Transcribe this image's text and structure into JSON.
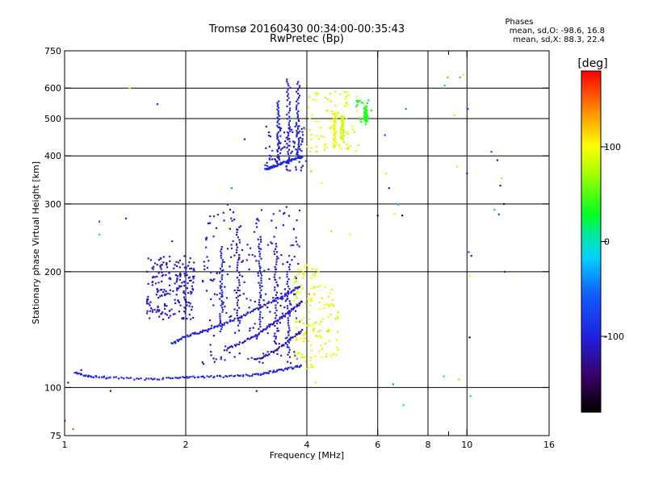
{
  "header": {
    "title_line1": "Tromsø 20160430 00:34:00-00:35:43",
    "title_line2": "RwPretec (Bp)",
    "stats_title": "Phases",
    "stats_line1": "mean, sd,O: -98.6, 16.8",
    "stats_line2": "mean, sd,X: 88.3, 22.4"
  },
  "chart_data": {
    "type": "scatter",
    "xlabel": "Frequency [MHz]",
    "ylabel": "Stationary phase Virtual Height [km]",
    "x_scale": "log",
    "y_scale": "log",
    "xlim": [
      1,
      16
    ],
    "ylim": [
      75,
      750
    ],
    "x_ticks": [
      1,
      2,
      4,
      6,
      8,
      10,
      16
    ],
    "x_tick_labels": [
      "1",
      "2",
      "4",
      "6",
      "8",
      "10",
      "16"
    ],
    "x_minor_ticks": [
      9
    ],
    "x_grid": [
      2,
      4,
      6,
      8,
      10
    ],
    "y_ticks": [
      75,
      100,
      200,
      300,
      400,
      500,
      600,
      750
    ],
    "y_tick_labels": [
      "75",
      "100",
      "200",
      "300",
      "400",
      "500",
      "600",
      "750"
    ],
    "y_grid": [
      100,
      200,
      300,
      400,
      500,
      600
    ],
    "grid": true,
    "colorbar": {
      "label": "[deg]",
      "range": [
        -180,
        180
      ],
      "ticks": [
        100,
        0,
        -100
      ],
      "tick_labels": [
        "100",
        "0",
        "-100"
      ]
    },
    "traces": [
      {
        "kind": "line",
        "phase": -95,
        "points": [
          [
            1.06,
            109
          ],
          [
            1.15,
            107
          ],
          [
            1.3,
            106
          ],
          [
            1.6,
            105
          ],
          [
            1.9,
            106
          ],
          [
            2.2,
            106.5
          ],
          [
            2.6,
            107
          ],
          [
            3.0,
            108
          ],
          [
            3.3,
            110
          ],
          [
            3.6,
            112
          ],
          [
            3.9,
            114
          ]
        ]
      },
      {
        "kind": "line",
        "phase": -100,
        "points": [
          [
            1.85,
            130
          ],
          [
            2.0,
            136
          ],
          [
            2.2,
            140
          ],
          [
            2.4,
            144
          ],
          [
            2.7,
            152
          ],
          [
            3.0,
            160
          ],
          [
            3.3,
            168
          ],
          [
            3.6,
            176
          ],
          [
            3.85,
            184
          ]
        ]
      },
      {
        "kind": "line",
        "phase": -110,
        "points": [
          [
            2.5,
            125
          ],
          [
            2.8,
            132
          ],
          [
            3.1,
            140
          ],
          [
            3.4,
            150
          ],
          [
            3.7,
            160
          ],
          [
            3.9,
            168
          ]
        ]
      },
      {
        "kind": "line",
        "phase": -120,
        "points": [
          [
            3.0,
            118
          ],
          [
            3.3,
            124
          ],
          [
            3.6,
            132
          ],
          [
            3.9,
            142
          ]
        ]
      },
      {
        "kind": "line",
        "phase": -95,
        "points": [
          [
            3.15,
            368
          ],
          [
            3.3,
            375
          ],
          [
            3.5,
            384
          ],
          [
            3.7,
            392
          ],
          [
            3.9,
            398
          ]
        ]
      },
      {
        "kind": "vline",
        "phase": -100,
        "x": 3.05,
        "y": [
          140,
          250
        ]
      },
      {
        "kind": "vline",
        "phase": -105,
        "x": 3.35,
        "y": [
          130,
          240
        ]
      },
      {
        "kind": "vline",
        "phase": -100,
        "x": 3.6,
        "y": [
          120,
          215
        ]
      },
      {
        "kind": "vline",
        "phase": -110,
        "x": 2.7,
        "y": [
          145,
          265
        ]
      },
      {
        "kind": "vline",
        "phase": -95,
        "x": 2.45,
        "y": [
          140,
          235
        ]
      },
      {
        "kind": "vline",
        "phase": -100,
        "x": 3.6,
        "y": [
          390,
          640
        ]
      },
      {
        "kind": "vline",
        "phase": -100,
        "x": 3.4,
        "y": [
          380,
          560
        ]
      },
      {
        "kind": "vline",
        "phase": -105,
        "x": 3.8,
        "y": [
          395,
          630
        ]
      },
      {
        "kind": "vline",
        "phase": 95,
        "x": 4.7,
        "y": [
          420,
          520
        ]
      },
      {
        "kind": "vline",
        "phase": 85,
        "x": 4.9,
        "y": [
          440,
          510
        ]
      },
      {
        "kind": "vline",
        "phase": 40,
        "x": 5.6,
        "y": [
          490,
          540
        ]
      }
    ],
    "clusters": [
      {
        "phase": -105,
        "x": [
          1.6,
          2.1
        ],
        "y": [
          150,
          220
        ],
        "n": 210
      },
      {
        "phase": -100,
        "x": [
          2.2,
          3.9
        ],
        "y": [
          115,
          300
        ],
        "n": 230
      },
      {
        "phase": 95,
        "x": [
          3.7,
          4.3
        ],
        "y": [
          112,
          210
        ],
        "n": 110
      },
      {
        "phase": 90,
        "x": [
          4.3,
          4.8
        ],
        "y": [
          120,
          185
        ],
        "n": 45
      },
      {
        "phase": -100,
        "x": [
          3.15,
          4.0
        ],
        "y": [
          365,
          480
        ],
        "n": 90
      },
      {
        "phase": 90,
        "x": [
          4.0,
          5.4
        ],
        "y": [
          410,
          590
        ],
        "n": 80
      },
      {
        "phase": 30,
        "x": [
          5.3,
          5.8
        ],
        "y": [
          480,
          560
        ],
        "n": 20
      }
    ],
    "scatter_points": [
      [
        1.22,
        270,
        -70
      ],
      [
        1.22,
        250,
        -10
      ],
      [
        1.42,
        275,
        -85
      ],
      [
        1.45,
        600,
        100
      ],
      [
        1.7,
        545,
        -100
      ],
      [
        1.85,
        240,
        -95
      ],
      [
        2.8,
        442,
        -110
      ],
      [
        2.6,
        330,
        -40
      ],
      [
        2.55,
        260,
        100
      ],
      [
        3.0,
        98,
        -100
      ],
      [
        1.3,
        98,
        -110
      ],
      [
        4.2,
        103,
        110
      ],
      [
        4.35,
        340,
        95
      ],
      [
        4.6,
        255,
        120
      ],
      [
        5.1,
        250,
        100
      ],
      [
        6.0,
        280,
        -140
      ],
      [
        6.25,
        453,
        -60
      ],
      [
        6.3,
        360,
        80
      ],
      [
        6.4,
        330,
        -110
      ],
      [
        6.6,
        283,
        90
      ],
      [
        6.55,
        102,
        -40
      ],
      [
        6.75,
        299,
        -30
      ],
      [
        6.9,
        280,
        -150
      ],
      [
        6.95,
        90,
        -10
      ],
      [
        7.05,
        530,
        -40
      ],
      [
        8.75,
        107,
        10
      ],
      [
        8.8,
        610,
        30
      ],
      [
        8.95,
        640,
        130
      ],
      [
        9.3,
        510,
        110
      ],
      [
        9.45,
        375,
        90
      ],
      [
        9.55,
        105,
        60
      ],
      [
        9.6,
        640,
        -10
      ],
      [
        9.8,
        650,
        100
      ],
      [
        10.0,
        360,
        -110
      ],
      [
        10.05,
        530,
        -70
      ],
      [
        10.1,
        225,
        -70
      ],
      [
        10.15,
        195,
        90
      ],
      [
        10.2,
        95,
        -10
      ],
      [
        10.15,
        135,
        -170
      ],
      [
        10.25,
        220,
        -120
      ],
      [
        11.5,
        410,
        -60
      ],
      [
        11.7,
        290,
        -20
      ],
      [
        11.9,
        390,
        -110
      ],
      [
        12.0,
        282,
        -60
      ],
      [
        12.1,
        335,
        -110
      ],
      [
        12.2,
        350,
        70
      ],
      [
        12.35,
        300,
        -130
      ],
      [
        12.4,
        200,
        -100
      ],
      [
        1.0,
        82,
        -160
      ],
      [
        1.05,
        78,
        150
      ],
      [
        1.02,
        103,
        -120
      ],
      [
        1.1,
        111,
        -110
      ],
      [
        4.05,
        175,
        140
      ],
      [
        4.1,
        365,
        60
      ],
      [
        3.95,
        470,
        40
      ],
      [
        3.7,
        500,
        20
      ]
    ]
  }
}
